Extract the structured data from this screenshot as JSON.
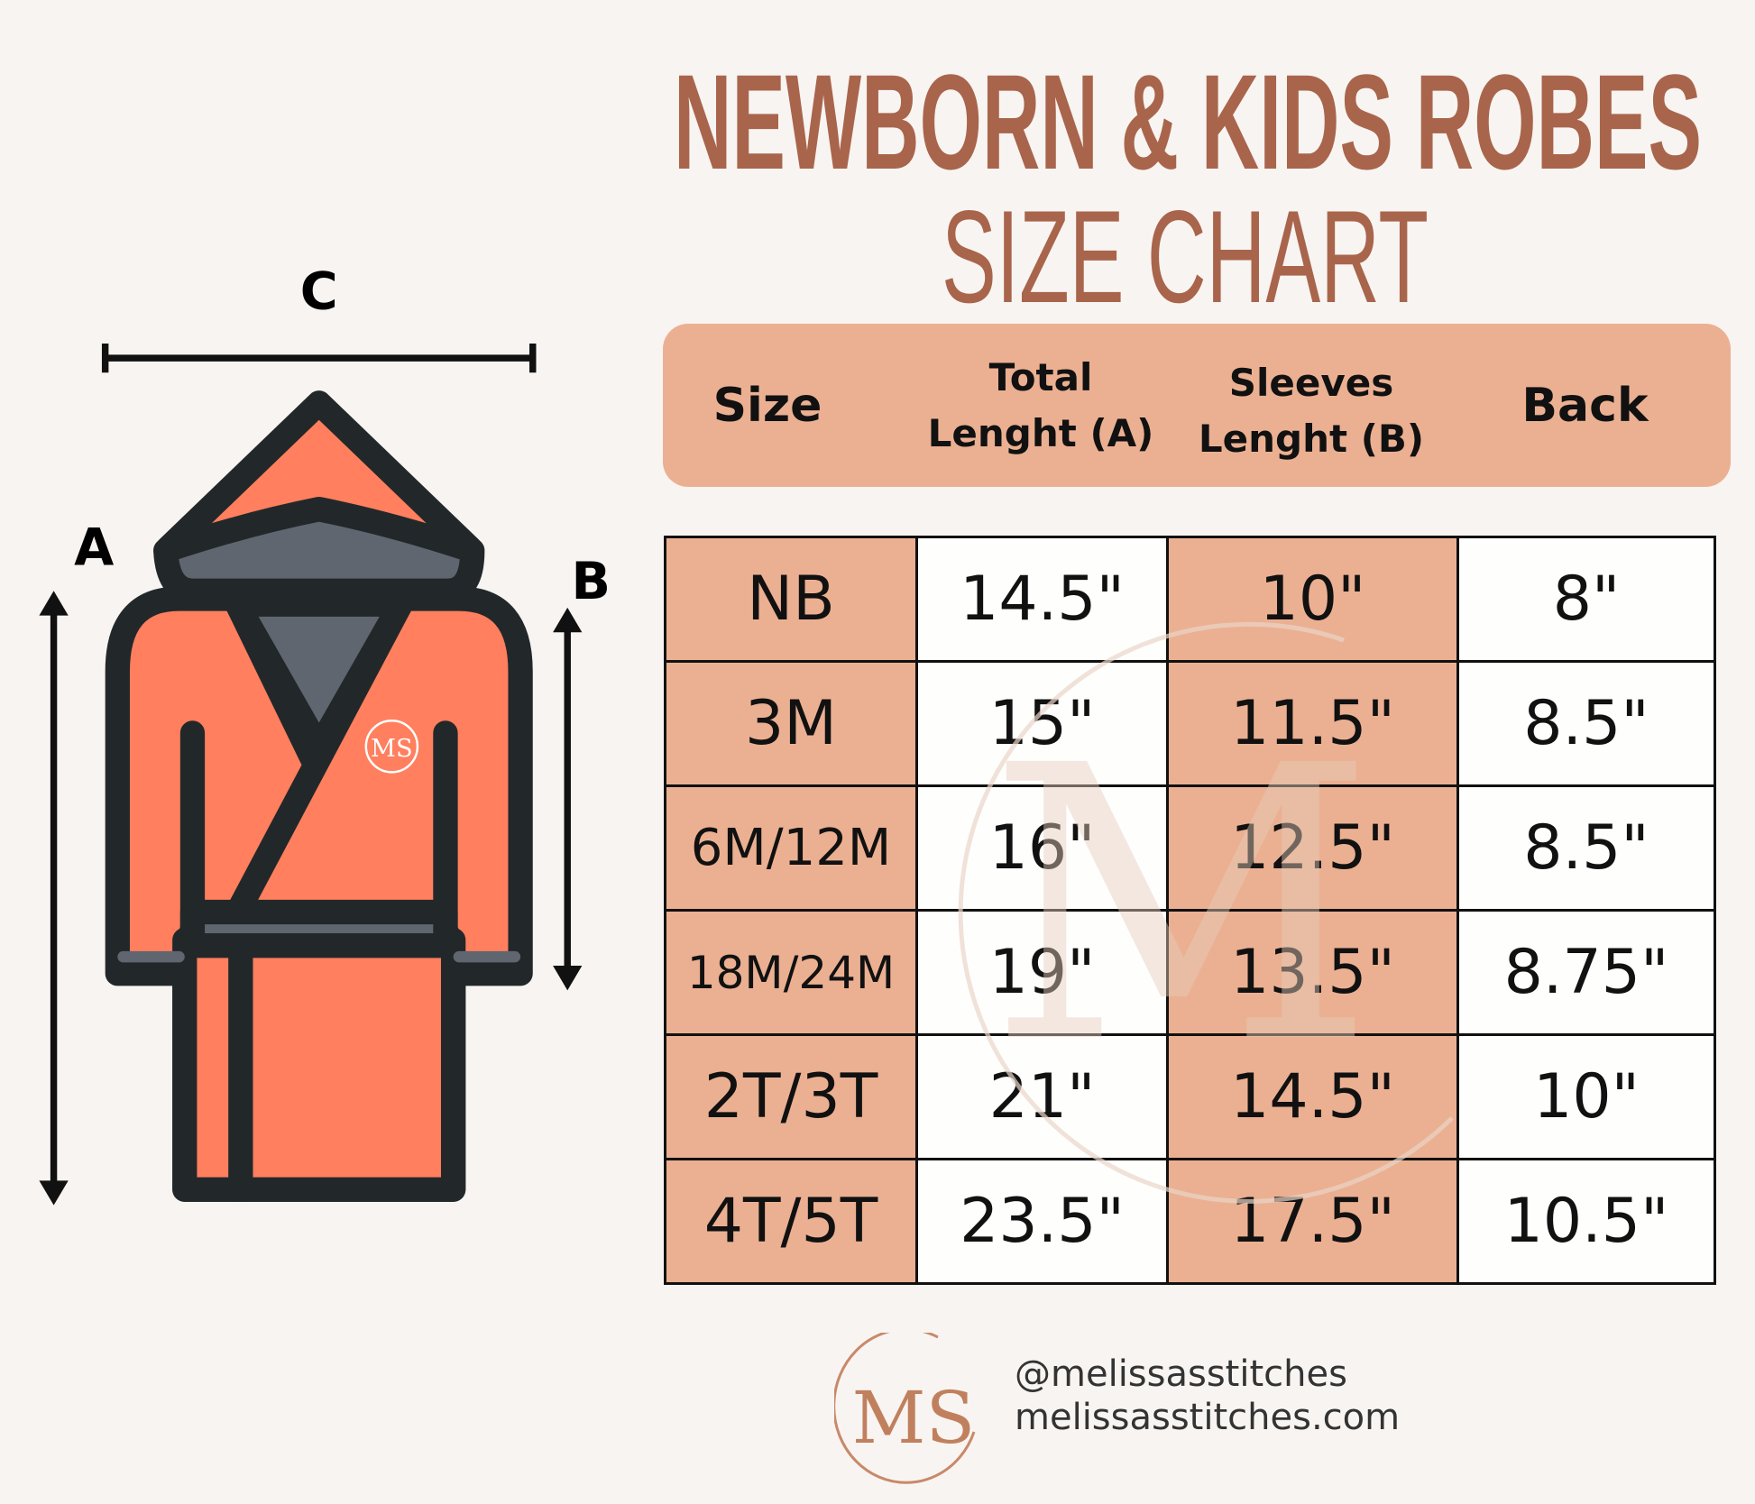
{
  "title": {
    "line1": "NEWBORN & KIDS ROBES",
    "line2": "SIZE CHART"
  },
  "diagram": {
    "label_a": "A",
    "label_b": "B",
    "label_c": "C",
    "robe_logo": "MS"
  },
  "colors": {
    "background": "#F8F4F1",
    "title": "#A8654C",
    "accent": "#EBB092",
    "robe": "#FF7F5E",
    "robe_gray": "#5F6670",
    "outline": "#22282A"
  },
  "table": {
    "headers": [
      {
        "line1": "Size",
        "line2": ""
      },
      {
        "line1": "Total",
        "line2": "Lenght (A)"
      },
      {
        "line1": "Sleeves",
        "line2": "Lenght (B)"
      },
      {
        "line1": "Back",
        "line2": ""
      }
    ],
    "rows": [
      [
        "NB",
        "14.5\"",
        "10\"",
        "8\""
      ],
      [
        "3M",
        "15\"",
        "11.5\"",
        "8.5\""
      ],
      [
        "6M/12M",
        "16\"",
        "12.5\"",
        "8.5\""
      ],
      [
        "18M/24M",
        "19\"",
        "13.5\"",
        "8.75\""
      ],
      [
        "2T/3T",
        "21\"",
        "14.5\"",
        "10\""
      ],
      [
        "4T/5T",
        "23.5\"",
        "17.5\"",
        "10.5\""
      ]
    ]
  },
  "footer": {
    "logo": "MS",
    "handle": "@melissasstitches",
    "website": "melissasstitches.com"
  }
}
